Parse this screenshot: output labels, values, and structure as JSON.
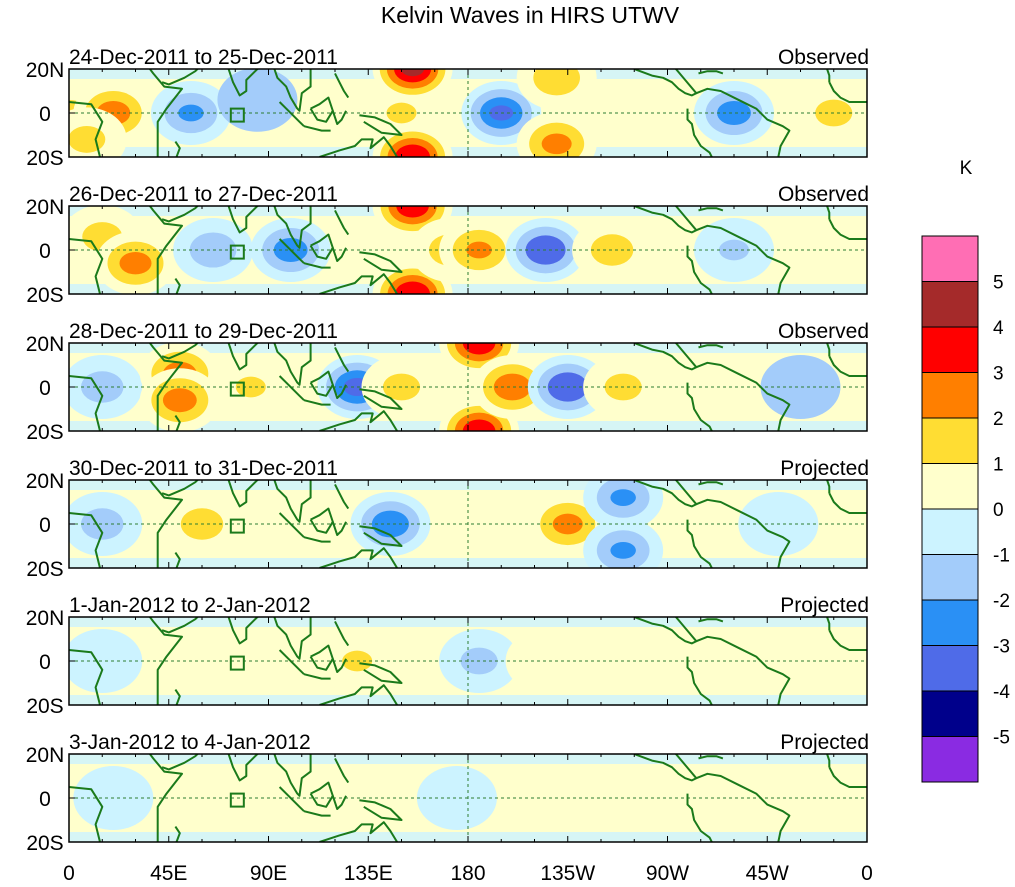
{
  "title": "Kelvin Waves in HIRS UTWV",
  "lat_ticks": [
    "20N",
    "0",
    "20S"
  ],
  "lon_ticks": [
    "0",
    "45E",
    "90E",
    "135E",
    "180",
    "135W",
    "90W",
    "45W",
    "0"
  ],
  "colorbar": {
    "unit": "K",
    "labels": [
      "5",
      "4",
      "3",
      "2",
      "1",
      "0",
      "-1",
      "-2",
      "-3",
      "-4",
      "-5"
    ],
    "colors": [
      "#ff6eb4",
      "#a52a2a",
      "#ff0000",
      "#ff7f00",
      "#ffdd33",
      "#ffffcc",
      "#ccf3ff",
      "#a3ccfa",
      "#2a90f5",
      "#4f6be8",
      "#00008b",
      "#8a2be2"
    ]
  },
  "panels": [
    {
      "period": "24-Dec-2011 to 25-Dec-2011",
      "status": "Observed"
    },
    {
      "period": "26-Dec-2011 to 27-Dec-2011",
      "status": "Observed"
    },
    {
      "period": "28-Dec-2011 to 29-Dec-2011",
      "status": "Observed"
    },
    {
      "period": "30-Dec-2011 to 31-Dec-2011",
      "status": "Projected"
    },
    {
      "period": "1-Jan-2012 to 2-Jan-2012",
      "status": "Projected"
    },
    {
      "period": "3-Jan-2012 to 4-Jan-2012",
      "status": "Projected"
    }
  ],
  "anomalies": [
    [
      {
        "lon": 0,
        "lat": -2,
        "v": 1.8
      },
      {
        "lon": 20,
        "lat": 0,
        "v": 2.6
      },
      {
        "lon": 8,
        "lat": -12,
        "v": 1.4
      },
      {
        "lon": 55,
        "lat": 0,
        "v": -2.2
      },
      {
        "lon": 85,
        "lat": 6,
        "v": -1.0
      },
      {
        "lon": 150,
        "lat": 0,
        "v": 1.2
      },
      {
        "lon": 155,
        "lat": 20,
        "v": 4.2
      },
      {
        "lon": 155,
        "lat": -20,
        "v": 4.0
      },
      {
        "lon": 195,
        "lat": 0,
        "v": -3.2
      },
      {
        "lon": 220,
        "lat": 16,
        "v": 1.8
      },
      {
        "lon": 220,
        "lat": -14,
        "v": 2.4
      },
      {
        "lon": 300,
        "lat": 0,
        "v": -2.6
      },
      {
        "lon": 345,
        "lat": 0,
        "v": 1.4
      }
    ],
    [
      {
        "lon": 15,
        "lat": 6,
        "v": 1.5
      },
      {
        "lon": 30,
        "lat": -6,
        "v": 2.5
      },
      {
        "lon": 65,
        "lat": 0,
        "v": -1.8
      },
      {
        "lon": 100,
        "lat": 0,
        "v": -2.6
      },
      {
        "lon": 155,
        "lat": 20,
        "v": 3.8
      },
      {
        "lon": 155,
        "lat": -20,
        "v": 4.0
      },
      {
        "lon": 172,
        "lat": 0,
        "v": 1.6
      },
      {
        "lon": 185,
        "lat": 0,
        "v": 2.2
      },
      {
        "lon": 215,
        "lat": 0,
        "v": -3.0
      },
      {
        "lon": 245,
        "lat": 0,
        "v": 1.6
      },
      {
        "lon": 300,
        "lat": 0,
        "v": -1.2
      }
    ],
    [
      {
        "lon": 15,
        "lat": 0,
        "v": -1.6
      },
      {
        "lon": 50,
        "lat": 6,
        "v": 2.6
      },
      {
        "lon": 50,
        "lat": -6,
        "v": 2.6
      },
      {
        "lon": 82,
        "lat": 0,
        "v": 1.2
      },
      {
        "lon": 130,
        "lat": 0,
        "v": -3.4
      },
      {
        "lon": 150,
        "lat": 0,
        "v": 1.4
      },
      {
        "lon": 185,
        "lat": 20,
        "v": 3.8
      },
      {
        "lon": 185,
        "lat": -20,
        "v": 3.8
      },
      {
        "lon": 200,
        "lat": 0,
        "v": 2.8
      },
      {
        "lon": 225,
        "lat": 0,
        "v": -3.0
      },
      {
        "lon": 250,
        "lat": 0,
        "v": 1.4
      },
      {
        "lon": 330,
        "lat": 0,
        "v": -1.0
      }
    ],
    [
      {
        "lon": 15,
        "lat": 0,
        "v": -1.6
      },
      {
        "lon": 60,
        "lat": 0,
        "v": 1.6
      },
      {
        "lon": 100,
        "lat": 0,
        "v": 0.8
      },
      {
        "lon": 145,
        "lat": 0,
        "v": -2.8
      },
      {
        "lon": 225,
        "lat": 0,
        "v": 2.4
      },
      {
        "lon": 250,
        "lat": 12,
        "v": -2.2
      },
      {
        "lon": 250,
        "lat": -12,
        "v": -2.2
      },
      {
        "lon": 320,
        "lat": 0,
        "v": -0.8
      }
    ],
    [
      {
        "lon": 15,
        "lat": 0,
        "v": -0.8
      },
      {
        "lon": 130,
        "lat": 0,
        "v": 1.2
      },
      {
        "lon": 185,
        "lat": 0,
        "v": -1.4
      },
      {
        "lon": 215,
        "lat": 0,
        "v": 0.8
      },
      {
        "lon": 290,
        "lat": 0,
        "v": 0.4
      }
    ],
    [
      {
        "lon": 20,
        "lat": 0,
        "v": -0.6
      },
      {
        "lon": 100,
        "lat": 0,
        "v": 0.6
      },
      {
        "lon": 175,
        "lat": 0,
        "v": -0.6
      },
      {
        "lon": 250,
        "lat": 0,
        "v": 0.4
      }
    ]
  ]
}
